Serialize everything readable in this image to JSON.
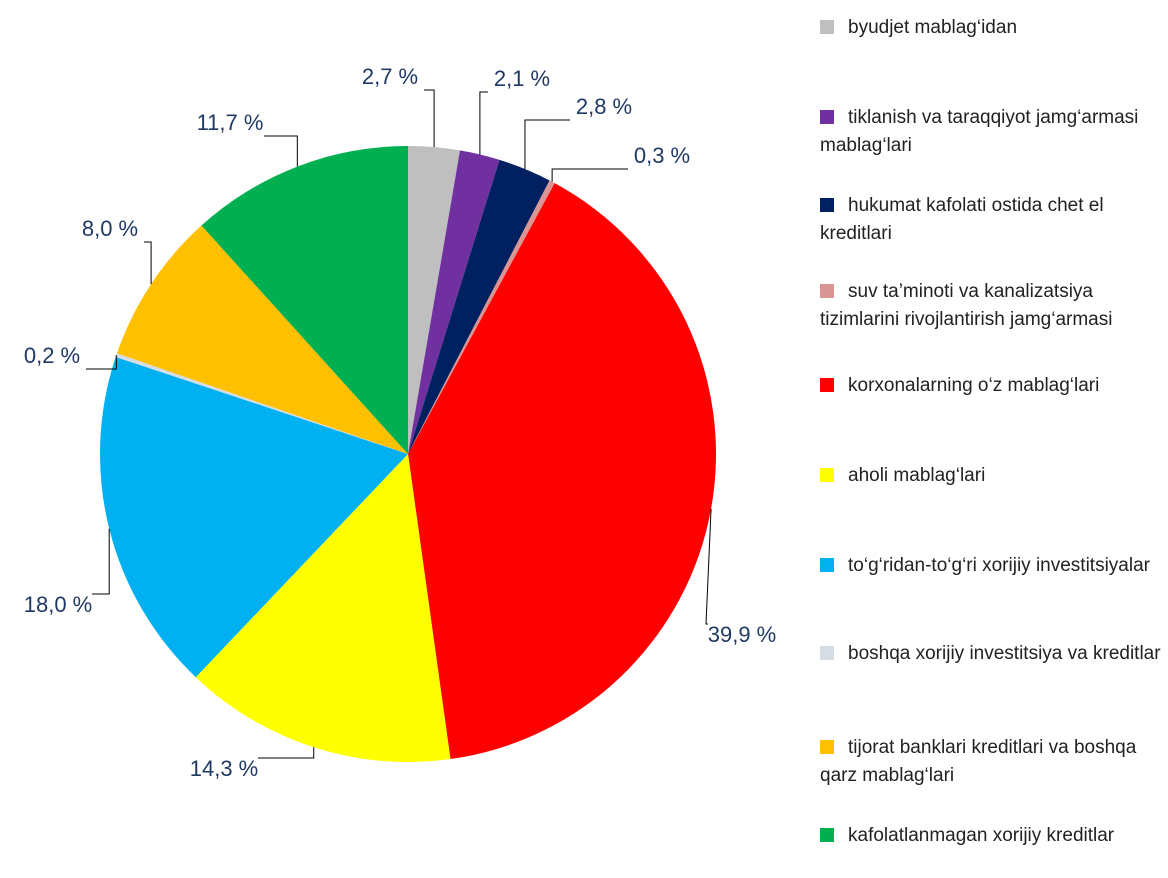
{
  "chart_data": {
    "type": "pie",
    "categories": [
      "byudjet mablag‘idan",
      "tiklanish va taraqqiyot jamg‘armasi mablag‘lari",
      "hukumat kafolati ostida chet el kreditlari",
      "suv ta’minoti va kanalizatsiya tizimlarini rivojlantirish jamg‘armasi",
      "korxonalarning o‘z mablag‘lari",
      "aholi mablag‘lari",
      "to‘g‘ridan-to‘g‘ri xorijiy investitsiyalar",
      "boshqa xorijiy investitsiya va kreditlar",
      "tijorat banklari kreditlari va boshqa qarz mablag‘lari",
      "kafolatlanmagan xorijiy kreditlar"
    ],
    "values": [
      2.7,
      2.1,
      2.8,
      0.3,
      39.9,
      14.3,
      18.0,
      0.2,
      8.0,
      11.7
    ],
    "value_labels": [
      "2,7 %",
      "2,1 %",
      "2,8 %",
      "0,3 %",
      "39,9 %",
      "14,3 %",
      "18,0 %",
      "0,2 %",
      "8,0 %",
      "11,7 %"
    ],
    "colors": [
      "#bfbfbf",
      "#7030a0",
      "#002060",
      "#da9694",
      "#ff0000",
      "#ffff00",
      "#00b0f0",
      "#d6dce4",
      "#ffc000",
      "#00b050"
    ],
    "legend": "right"
  }
}
